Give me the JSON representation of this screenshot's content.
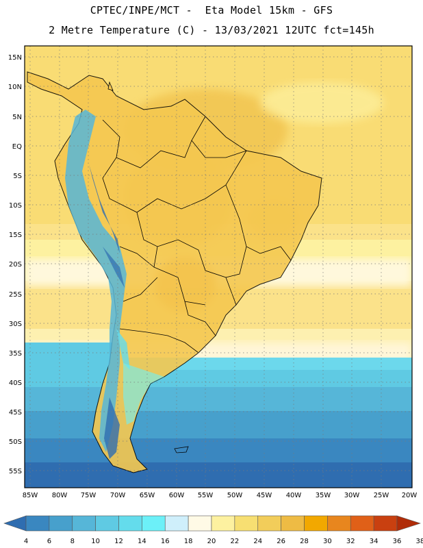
{
  "header": {
    "line1": "CPTEC/INPE/MCT -  Eta Model 15km - GFS",
    "line2": "2 Metre Temperature (C) - 13/03/2021 12UTC fct=145h"
  },
  "map": {
    "lat_labels": [
      "15N",
      "10N",
      "5N",
      "EQ",
      "5S",
      "10S",
      "15S",
      "20S",
      "25S",
      "30S",
      "35S",
      "40S",
      "45S",
      "50S",
      "55S"
    ],
    "lon_labels": [
      "85W",
      "80W",
      "75W",
      "70W",
      "65W",
      "60W",
      "55W",
      "50W",
      "45W",
      "40W",
      "35W",
      "30W",
      "25W",
      "20W"
    ],
    "lat_range": [
      -58,
      17
    ],
    "lon_range": [
      -85.5,
      -19.5
    ],
    "grid": "dotted"
  },
  "legend": {
    "values": [
      "4",
      "6",
      "8",
      "10",
      "12",
      "14",
      "16",
      "18",
      "20",
      "22",
      "24",
      "26",
      "28",
      "30",
      "32",
      "34",
      "36",
      "38"
    ],
    "colors": [
      "#2f6db0",
      "#3a87c0",
      "#47a0cc",
      "#56b6d8",
      "#5fcae3",
      "#64dcec",
      "#6cf0f8",
      "#cfeffb",
      "#fffae6",
      "#fdf1a0",
      "#f7df72",
      "#f2cd5a",
      "#eebb44",
      "#f2a800",
      "#e8861e",
      "#e06018",
      "#c94010",
      "#b02c08"
    ]
  }
}
